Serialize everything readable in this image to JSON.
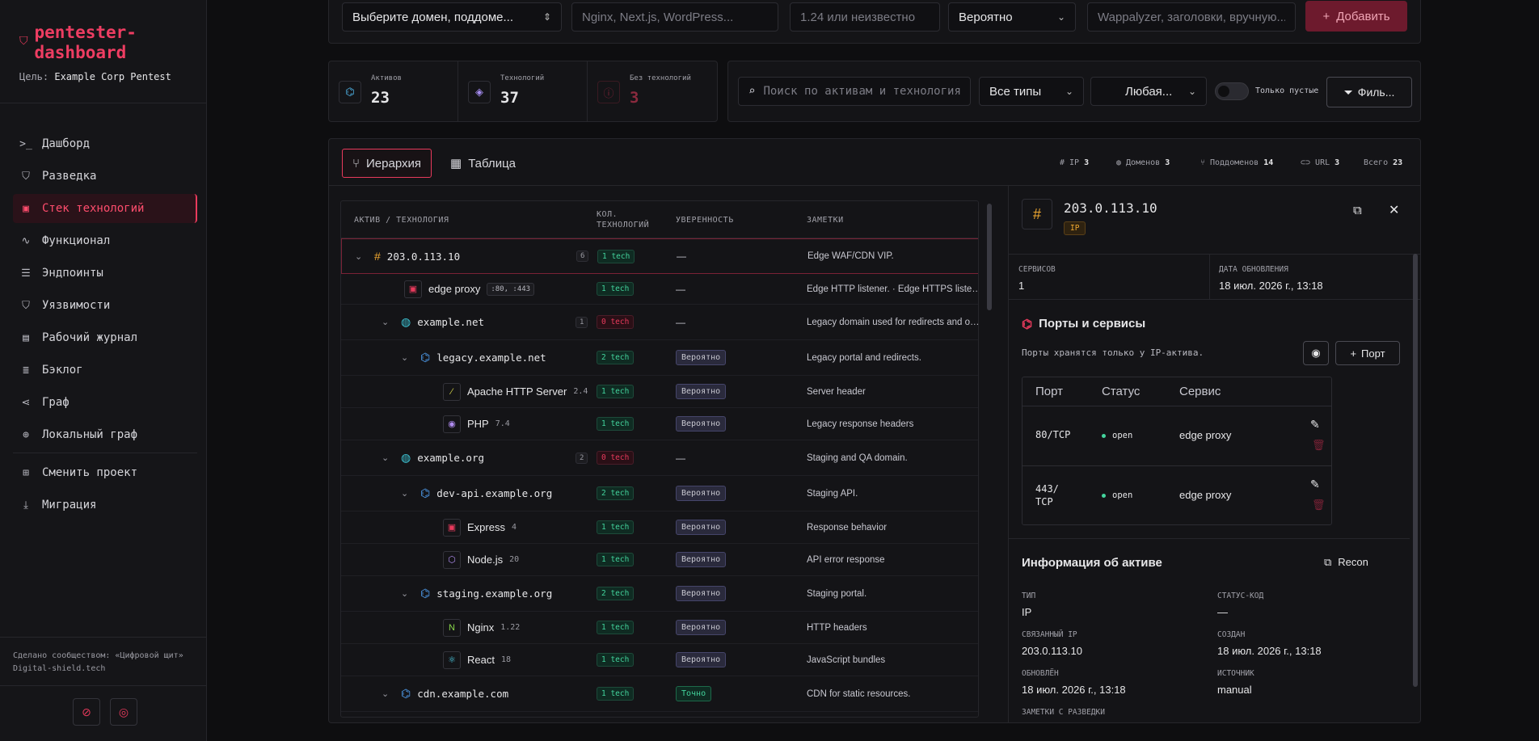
{
  "sidebar": {
    "logo": "pentester-dashboard",
    "target_label": "Цель:",
    "target_value": "Example Corp Pentest",
    "nav": [
      {
        "label": "Дашборд",
        "icon": "terminal-icon"
      },
      {
        "label": "Разведка",
        "icon": "shield-icon"
      },
      {
        "label": "Стек технологий",
        "icon": "chip-icon"
      },
      {
        "label": "Функционал",
        "icon": "activity-icon"
      },
      {
        "label": "Эндпоинты",
        "icon": "database-icon"
      },
      {
        "label": "Уязвимости",
        "icon": "shield-icon"
      },
      {
        "label": "Рабочий журнал",
        "icon": "clipboard-icon"
      },
      {
        "label": "Бэклог",
        "icon": "list-icon"
      },
      {
        "label": "Граф",
        "icon": "share-icon"
      },
      {
        "label": "Локальный граф",
        "icon": "crosshair-icon"
      }
    ],
    "nav2": [
      {
        "label": "Сменить проект",
        "icon": "grid-icon"
      },
      {
        "label": "Миграция",
        "icon": "download-icon"
      }
    ],
    "footer_line1": "Сделано сообществом: «Цифровой щит»",
    "footer_line2": "Digital-shield.tech"
  },
  "top_form": {
    "domain_select": "Выберите домен, поддоме...",
    "tech_placeholder": "Nginx, Next.js, WordPress...",
    "version_placeholder": "1.24 или неизвестно",
    "confidence_select": "Вероятно",
    "source_placeholder": "Wappalyzer, заголовки, вручную...",
    "add_button": "Добавить"
  },
  "stats": [
    {
      "label": "Активов",
      "value": "23"
    },
    {
      "label": "Технологий",
      "value": "37"
    },
    {
      "label": "Без технологий",
      "value": "3"
    }
  ],
  "filters": {
    "search_placeholder": "Поиск по активам и технологиям",
    "types_select": "Все типы",
    "any_select": "Любая...",
    "only_empty_label": "Только пустые",
    "filter_button": "Филь..."
  },
  "tabs": {
    "hierarchy": "Иерархия",
    "table": "Таблица"
  },
  "counters": [
    {
      "label": "IP",
      "value": "3"
    },
    {
      "label": "Доменов",
      "value": "3"
    },
    {
      "label": "Поддоменов",
      "value": "14"
    },
    {
      "label": "URL",
      "value": "3"
    },
    {
      "label": "Всего",
      "value": "23"
    }
  ],
  "table": {
    "headers": {
      "asset": "АКТИВ / ТЕХНОЛОГИЯ",
      "count": "КОЛ. ТЕХНОЛОГИЙ",
      "confidence": "УВЕРЕННОСТЬ",
      "notes": "ЗАМЕТКИ"
    },
    "rows": [
      {
        "name": "203.0.113.10",
        "kind": "ip",
        "childcount": "6",
        "tech": "1 tech",
        "conf": "—",
        "note": "Edge WAF/CDN VIP."
      },
      {
        "name": "edge proxy",
        "kind": "tech",
        "ports": ":80, :443",
        "tech": "1 tech",
        "conf": "—",
        "note": "Edge HTTP listener. · Edge HTTPS listener."
      },
      {
        "name": "example.net",
        "kind": "domain",
        "childcount": "1",
        "tech": "0 tech",
        "conf": "—",
        "note": "Legacy domain used for redirects and old portal."
      },
      {
        "name": "legacy.example.net",
        "kind": "sub",
        "tech": "2 tech",
        "conf": "Вероятно",
        "note": "Legacy portal and redirects."
      },
      {
        "name": "Apache HTTP Server",
        "kind": "tech",
        "version": "2.4",
        "tech": "1 tech",
        "conf": "Вероятно",
        "note": "Server header"
      },
      {
        "name": "PHP",
        "kind": "tech",
        "version": "7.4",
        "tech": "1 tech",
        "conf": "Вероятно",
        "note": "Legacy response headers"
      },
      {
        "name": "example.org",
        "kind": "domain",
        "childcount": "2",
        "tech": "0 tech",
        "conf": "—",
        "note": "Staging and QA domain."
      },
      {
        "name": "dev-api.example.org",
        "kind": "sub",
        "tech": "2 tech",
        "conf": "Вероятно",
        "note": "Staging API."
      },
      {
        "name": "Express",
        "kind": "tech",
        "version": "4",
        "tech": "1 tech",
        "conf": "Вероятно",
        "note": "Response behavior"
      },
      {
        "name": "Node.js",
        "kind": "tech",
        "version": "20",
        "tech": "1 tech",
        "conf": "Вероятно",
        "note": "API error response"
      },
      {
        "name": "staging.example.org",
        "kind": "sub",
        "tech": "2 tech",
        "conf": "Вероятно",
        "note": "Staging portal."
      },
      {
        "name": "Nginx",
        "kind": "tech",
        "version": "1.22",
        "tech": "1 tech",
        "conf": "Вероятно",
        "note": "HTTP headers"
      },
      {
        "name": "React",
        "kind": "tech",
        "version": "18",
        "tech": "1 tech",
        "conf": "Вероятно",
        "note": "JavaScript bundles"
      },
      {
        "name": "cdn.example.com",
        "kind": "sub",
        "tech": "1 tech",
        "conf": "Точно",
        "note": "CDN for static resources."
      }
    ]
  },
  "detail": {
    "title": "203.0.113.10",
    "type_badge": "IP",
    "services_label": "СЕРВИСОВ",
    "services_value": "1",
    "updated_label": "ДАТА ОБНОВЛЕНИЯ",
    "updated_value": "18 июл. 2026 г., 13:18",
    "ports_title": "Порты и сервисы",
    "ports_hint": "Порты хранятся только у IP-актива.",
    "port_button": "Порт",
    "ports_headers": {
      "port": "Порт",
      "status": "Статус",
      "service": "Сервис"
    },
    "ports": [
      {
        "port": "80/TCP",
        "status": "open",
        "service": "edge proxy"
      },
      {
        "port": "443/ TCP",
        "status": "open",
        "service": "edge proxy"
      }
    ],
    "info_title": "Информация об активе",
    "recon_button": "Recon",
    "info": {
      "type_label": "ТИП",
      "type_value": "IP",
      "status_label": "СТАТУС-КОД",
      "status_value": "—",
      "linked_ip_label": "СВЯЗАННЫЙ IP",
      "linked_ip_value": "203.0.113.10",
      "created_label": "СОЗДАН",
      "created_value": "18 июл. 2026 г., 13:18",
      "updated_label": "ОБНОВЛЁН",
      "updated_value": "18 июл. 2026 г., 13:18",
      "source_label": "ИСТОЧНИК",
      "source_value": "manual",
      "recon_notes_label": "ЗАМЕТКИ С РАЗВЕДКИ"
    }
  },
  "colors": {
    "accent": "#e83a5c",
    "success": "#43d49d",
    "background": "#0e0e10"
  }
}
